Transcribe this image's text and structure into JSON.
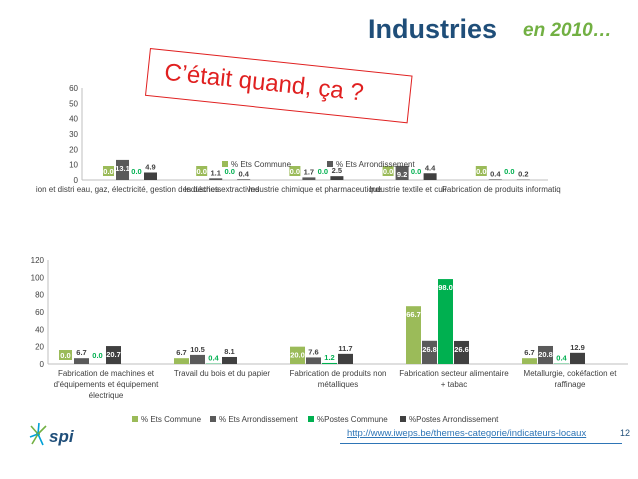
{
  "slide": {
    "title": "Industries",
    "subtitle": "en 2010…",
    "stamp": "C’était quand, ça ?",
    "footer_url": "http://www.iweps.be/themes-categorie/indicateurs-locaux",
    "page_number": "12",
    "logo_text": "spi"
  },
  "colors": {
    "light_green": "#9bbb59",
    "dark_gray": "#5a5a5a",
    "bright_green": "#00b050",
    "darker_gray": "#404040",
    "title_blue": "#1f4e79",
    "subtitle_green": "#72b043"
  },
  "chart_data": [
    {
      "type": "bar",
      "title": "",
      "categories": [
        "Production et distribution d'électricité, eau, gaz, électricité, gestion des déchets",
        "Industries extractives",
        "Industrie chimique et pharmaceutique",
        "Industrie textile et cuir",
        "Fabrication de produits informatiques"
      ],
      "tick_labels": [
        "ion et distri eau, gaz, électricité, gestion des déchets",
        "Industries extractives",
        "Industrie chimique et pharmaceutique",
        "Industrie textile et cuir",
        "Fabrication de produits informatiq"
      ],
      "series": [
        {
          "name": "% Ets Commune",
          "values": [
            0.0,
            0.0,
            0.0,
            0.0,
            0.0
          ],
          "color": "#9bbb59",
          "labels": [
            "0.0",
            "0.0",
            "0.0",
            "0.0",
            "0.0"
          ]
        },
        {
          "name": "% Ets Arrondissement",
          "values": [
            13.1,
            1.1,
            1.7,
            9.2,
            0.4
          ],
          "color": "#5a5a5a",
          "labels": [
            "13.1",
            "1.1",
            "1.7",
            "9.2",
            "0.4"
          ]
        },
        {
          "name": "%Postes Commune",
          "values": [
            0.0,
            0.0,
            0.0,
            0.0,
            0.0
          ],
          "color": "#00b050",
          "labels": [
            "0.0",
            "0.0",
            "0.0",
            "0.0",
            "0.0"
          ]
        },
        {
          "name": "%Postes Arrondissement",
          "values": [
            4.9,
            0.4,
            2.5,
            4.4,
            0.2
          ],
          "color": "#404040",
          "labels": [
            "4.9",
            "0.4",
            "2.5",
            "4.4",
            "0.2"
          ]
        }
      ],
      "legend": [
        "% Ets Commune",
        "% Ets Arrondissement"
      ],
      "yticks": [
        "0",
        "10",
        "20",
        "30",
        "40",
        "50",
        "60"
      ],
      "ylim": [
        0,
        60
      ],
      "xlabel": "",
      "ylabel": "",
      "legend_position": "center"
    },
    {
      "type": "bar",
      "title": "",
      "categories": [
        "Fabrication de machines et d'équipements et équipement électrique",
        "Travail du bois et du papier",
        "Fabrication de produits non métalliques",
        "Fabrication secteur alimentaire + tabac",
        "Metallurgie, cokéfaction et raffinage"
      ],
      "tick_labels": [
        [
          "Fabrication de machines et",
          "d'équipements et équipement",
          "électrique"
        ],
        [
          "Travail du bois et du papier"
        ],
        [
          "Fabrication de produits non",
          "métalliques"
        ],
        [
          "Fabrication secteur alimentaire",
          "+ tabac"
        ],
        [
          "Metallurgie, cokéfaction et",
          "raffinage"
        ]
      ],
      "series": [
        {
          "name": "% Ets Commune",
          "values": [
            0.0,
            6.7,
            20.0,
            66.7,
            6.7
          ],
          "color": "#9bbb59",
          "labels": [
            "0.0",
            "6.7",
            "20.0",
            "66.7",
            "6.7"
          ]
        },
        {
          "name": "% Ets Arrondissement",
          "values": [
            6.7,
            10.5,
            7.6,
            26.8,
            20.8
          ],
          "color": "#5a5a5a",
          "labels": [
            "6.7",
            "10.5",
            "7.6",
            "26.8",
            "20.8"
          ]
        },
        {
          "name": "%Postes Commune",
          "values": [
            0.0,
            0.4,
            1.2,
            98.0,
            0.4
          ],
          "color": "#00b050",
          "labels": [
            "0.0",
            "0.4",
            "1.2",
            "98.0",
            "0.4"
          ]
        },
        {
          "name": "%Postes Arrondissement",
          "values": [
            20.7,
            8.1,
            11.7,
            26.6,
            12.9
          ],
          "color": "#404040",
          "labels": [
            "20.7",
            "8.1",
            "11.7",
            "26.6",
            "12.9"
          ]
        }
      ],
      "legend": [
        "% Ets Commune",
        "% Ets Arrondissement",
        "%Postes Commune",
        "%Postes Arrondissement"
      ],
      "yticks": [
        "0",
        "20",
        "40",
        "60",
        "80",
        "100",
        "120"
      ],
      "ylim": [
        0,
        120
      ],
      "xlabel": "",
      "ylabel": "",
      "legend_position": "bottom"
    }
  ]
}
